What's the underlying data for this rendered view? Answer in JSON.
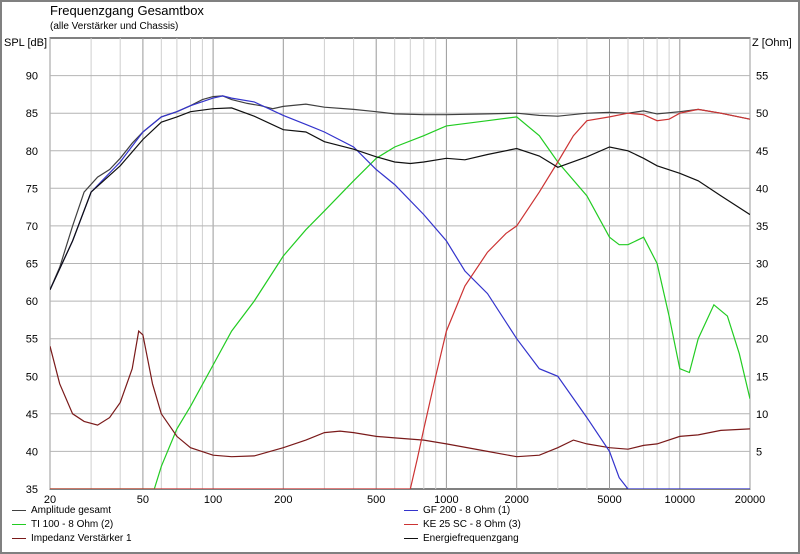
{
  "chart_data": {
    "type": "line",
    "title": "Frequenzgang Gesamtbox",
    "subtitle": "(alle Verstärker und Chassis)",
    "ylabel": "SPL [dB]",
    "y2label": "Z [Ohm]",
    "xscale": "log",
    "xlim": [
      20,
      20000
    ],
    "ylim": [
      35,
      95
    ],
    "y2lim": [
      0,
      60
    ],
    "grid": true,
    "legend_position": "bottom",
    "x_ticks": [
      "20",
      "50",
      "100",
      "200",
      "500",
      "1000",
      "2000",
      "5000",
      "10000",
      "20000"
    ],
    "y_ticks": [
      "35",
      "40",
      "45",
      "50",
      "55",
      "60",
      "65",
      "70",
      "75",
      "80",
      "85",
      "90"
    ],
    "y2_ticks": [
      "5",
      "10",
      "15",
      "20",
      "25",
      "30",
      "35",
      "40",
      "45",
      "50",
      "55"
    ],
    "series": [
      {
        "name": "Amplitude gesamt",
        "color": "#404040",
        "axis": "left",
        "x": [
          20,
          22,
          25,
          28,
          32,
          36,
          40,
          45,
          50,
          60,
          70,
          80,
          90,
          100,
          110,
          120,
          140,
          160,
          180,
          200,
          250,
          300,
          400,
          500,
          600,
          800,
          1000,
          1500,
          2000,
          2500,
          3000,
          4000,
          5000,
          6000,
          7000,
          8000,
          10000,
          12000,
          15000,
          20000
        ],
        "y": [
          61.5,
          64.5,
          70,
          74.5,
          76.5,
          77.5,
          79,
          81,
          82.5,
          84.5,
          85.2,
          86,
          86.8,
          87.2,
          87.3,
          86.8,
          86.3,
          86,
          85.6,
          85.9,
          86.2,
          85.8,
          85.5,
          85.2,
          84.9,
          84.8,
          84.8,
          84.9,
          85,
          84.7,
          84.6,
          85,
          85.1,
          85,
          85.3,
          84.9,
          85.2,
          85.5,
          85,
          84.2
        ]
      },
      {
        "name": "TI 100 - 8 Ohm (2)",
        "color": "#22cc22",
        "axis": "left",
        "x": [
          20,
          56,
          60,
          70,
          80,
          100,
          120,
          150,
          200,
          250,
          300,
          400,
          500,
          600,
          800,
          1000,
          1500,
          2000,
          2500,
          3000,
          4000,
          5000,
          5500,
          6000,
          7000,
          8000,
          9000,
          10000,
          11000,
          12000,
          14000,
          16000,
          18000,
          20000
        ],
        "y": [
          35,
          35,
          38,
          43,
          46,
          51.5,
          56,
          60,
          66,
          69.5,
          72,
          76,
          79,
          80.5,
          82,
          83.3,
          84,
          84.5,
          82,
          78.5,
          74,
          68.5,
          67.5,
          67.5,
          68.5,
          65,
          58,
          51,
          50.5,
          55,
          59.5,
          58,
          53,
          47
        ]
      },
      {
        "name": "Impedanz Verstärker 1",
        "color": "#7a1a1a",
        "axis": "right",
        "x": [
          20,
          22,
          25,
          28,
          32,
          36,
          40,
          45,
          48,
          50,
          55,
          60,
          70,
          80,
          100,
          120,
          150,
          200,
          250,
          300,
          350,
          400,
          500,
          600,
          800,
          1000,
          1500,
          2000,
          2500,
          3000,
          3500,
          4000,
          5000,
          6000,
          7000,
          8000,
          10000,
          12000,
          15000,
          20000
        ],
        "y": [
          19,
          14,
          10,
          9,
          8.5,
          9.5,
          11.5,
          16,
          21,
          20.5,
          14,
          10,
          7,
          5.5,
          4.5,
          4.3,
          4.4,
          5.5,
          6.5,
          7.5,
          7.7,
          7.5,
          7,
          6.8,
          6.5,
          6,
          5,
          4.3,
          4.5,
          5.5,
          6.5,
          6,
          5.5,
          5.3,
          5.8,
          6,
          7,
          7.2,
          7.8,
          8
        ]
      },
      {
        "name": "GF 200 - 8 Ohm (1)",
        "color": "#3333cc",
        "axis": "left",
        "x": [
          20,
          25,
          30,
          40,
          50,
          60,
          70,
          80,
          100,
          110,
          120,
          150,
          200,
          250,
          300,
          400,
          500,
          600,
          800,
          1000,
          1200,
          1500,
          2000,
          2500,
          3000,
          4000,
          5000,
          5500,
          6000,
          20000
        ],
        "y": [
          61.5,
          68,
          74.5,
          78.5,
          82.5,
          84.5,
          85.2,
          86,
          87,
          87.3,
          87,
          86.5,
          84.7,
          83.5,
          82.5,
          80.5,
          77.5,
          75.5,
          71.5,
          68,
          64,
          61,
          55,
          51,
          50,
          44.5,
          40,
          36.5,
          35,
          35
        ]
      },
      {
        "name": "KE 25 SC - 8 Ohm    (3)",
        "color": "#cc3333",
        "axis": "left",
        "x": [
          20,
          700,
          750,
          800,
          900,
          1000,
          1200,
          1500,
          1800,
          2000,
          2500,
          3000,
          3500,
          4000,
          5000,
          6000,
          7000,
          8000,
          9000,
          10000,
          12000,
          15000,
          20000
        ],
        "y": [
          35,
          35,
          39,
          43,
          50,
          56,
          62,
          66.5,
          69,
          70,
          74.5,
          78.5,
          82,
          84,
          84.5,
          85,
          84.8,
          84,
          84.2,
          85,
          85.5,
          85,
          84.2
        ]
      },
      {
        "name": "Energiefrequenzgang",
        "color": "#101010",
        "axis": "left",
        "x": [
          20,
          25,
          30,
          40,
          50,
          60,
          70,
          80,
          100,
          120,
          150,
          200,
          250,
          300,
          400,
          500,
          600,
          700,
          800,
          1000,
          1200,
          1500,
          2000,
          2500,
          3000,
          4000,
          5000,
          6000,
          7000,
          8000,
          10000,
          12000,
          15000,
          20000
        ],
        "y": [
          61.5,
          68,
          74.5,
          78,
          81.5,
          83.8,
          84.5,
          85.2,
          85.6,
          85.7,
          84.6,
          82.8,
          82.5,
          81.2,
          80.2,
          79.2,
          78.5,
          78.3,
          78.5,
          79,
          78.8,
          79.5,
          80.3,
          79.3,
          77.8,
          79.2,
          80.5,
          80,
          79,
          78,
          77,
          76,
          74,
          71.5
        ]
      }
    ]
  }
}
